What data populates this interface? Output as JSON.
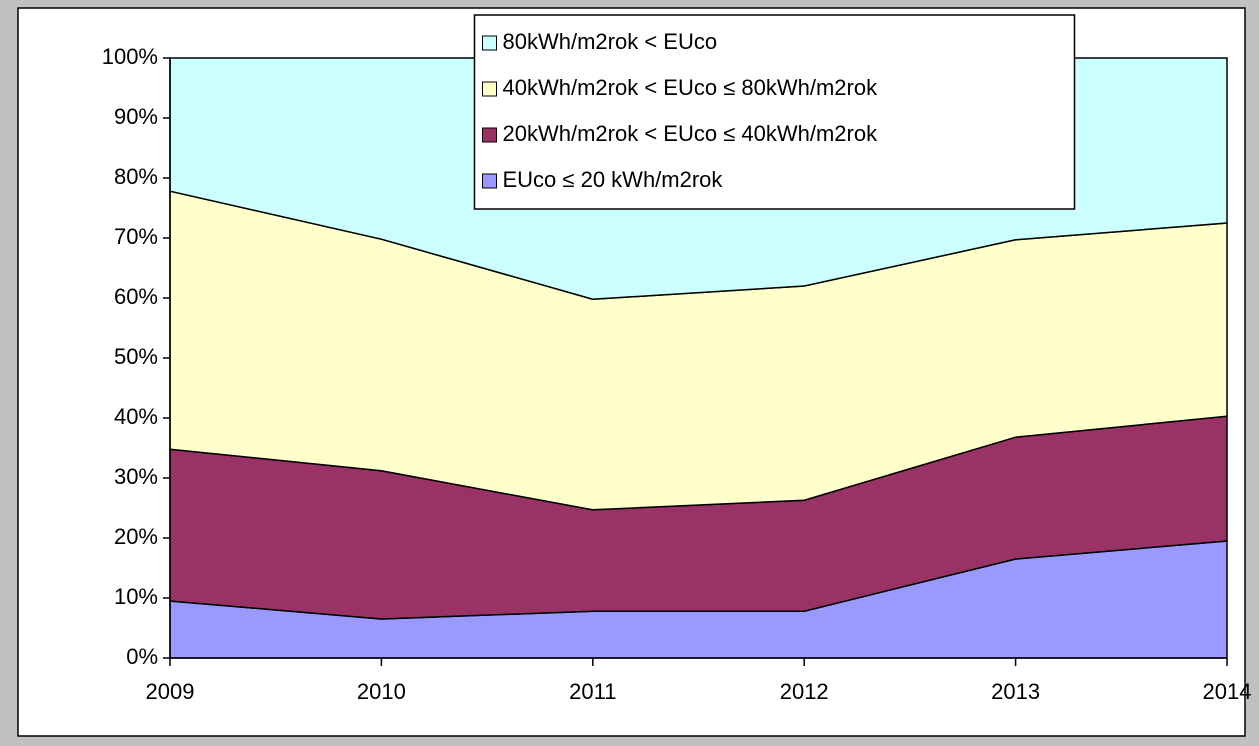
{
  "chart_data": {
    "type": "stacked_area",
    "categories": [
      "2009",
      "2010",
      "2011",
      "2012",
      "2013",
      "2014"
    ],
    "series": [
      {
        "name": "EUco ≤ 20 kWh/m2rok",
        "color": "#9999ff",
        "values": [
          9.5,
          6.5,
          7.8,
          7.8,
          16.5,
          19.5
        ]
      },
      {
        "name": "20kWh/m2rok < EUco ≤ 40kWh/m2rok",
        "color": "#993366",
        "values": [
          25.3,
          24.7,
          16.9,
          18.5,
          20.3,
          20.8
        ]
      },
      {
        "name": "40kWh/m2rok < EUco ≤ 80kWh/m2rok",
        "color": "#ffffcc",
        "values": [
          43.0,
          38.6,
          35.1,
          35.7,
          32.9,
          32.2
        ]
      },
      {
        "name": "80kWh/m2rok < EUco",
        "color": "#ccffff",
        "values": [
          22.2,
          30.2,
          40.2,
          38.0,
          30.3,
          27.5
        ]
      }
    ],
    "ylim": [
      0,
      100
    ],
    "yticks": [
      {
        "value": 0,
        "label": "0%"
      },
      {
        "value": 10,
        "label": "10%"
      },
      {
        "value": 20,
        "label": "20%"
      },
      {
        "value": 30,
        "label": "30%"
      },
      {
        "value": 40,
        "label": "40%"
      },
      {
        "value": 50,
        "label": "50%"
      },
      {
        "value": 60,
        "label": "60%"
      },
      {
        "value": 70,
        "label": "70%"
      },
      {
        "value": 80,
        "label": "80%"
      },
      {
        "value": 90,
        "label": "90%"
      },
      {
        "value": 100,
        "label": "100%"
      }
    ],
    "legend": "top-center"
  }
}
